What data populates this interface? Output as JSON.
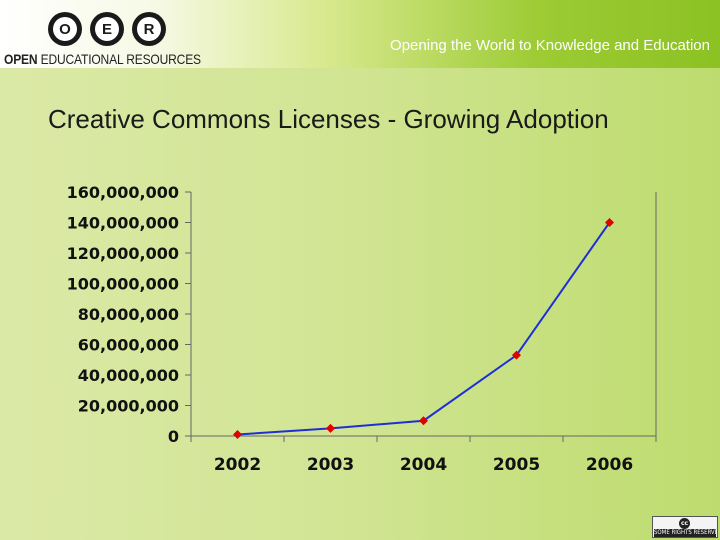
{
  "header": {
    "logo_letters": [
      "O",
      "E",
      "R"
    ],
    "logo_wordmark_bold": "OPEN",
    "logo_wordmark_rest": " EDUCATIONAL RESOURCES",
    "tagline": "Opening the World to Knowledge and Education"
  },
  "slide": {
    "title": "Creative Commons Licenses - Growing Adoption"
  },
  "badge": {
    "icon": "cc",
    "text": "SOME RIGHTS RESERVED"
  },
  "colors": {
    "line": "#1f2fd6",
    "marker": "#e00000",
    "axis": "#666666"
  },
  "chart_data": {
    "type": "line",
    "categories": [
      "2002",
      "2003",
      "2004",
      "2005",
      "2006"
    ],
    "series": [
      {
        "values": [
          1000000,
          5000000,
          10000000,
          53000000,
          140000000
        ]
      }
    ],
    "ylim": [
      0,
      160000000
    ],
    "yticks": [
      0,
      20000000,
      40000000,
      60000000,
      80000000,
      100000000,
      120000000,
      140000000,
      160000000
    ],
    "ytick_labels": [
      "0",
      "20,000,000",
      "40,000,000",
      "60,000,000",
      "80,000,000",
      "100,000,000",
      "120,000,000",
      "140,000,000",
      "160,000,000"
    ],
    "grid": false,
    "legend": "none",
    "marker": "diamond"
  }
}
